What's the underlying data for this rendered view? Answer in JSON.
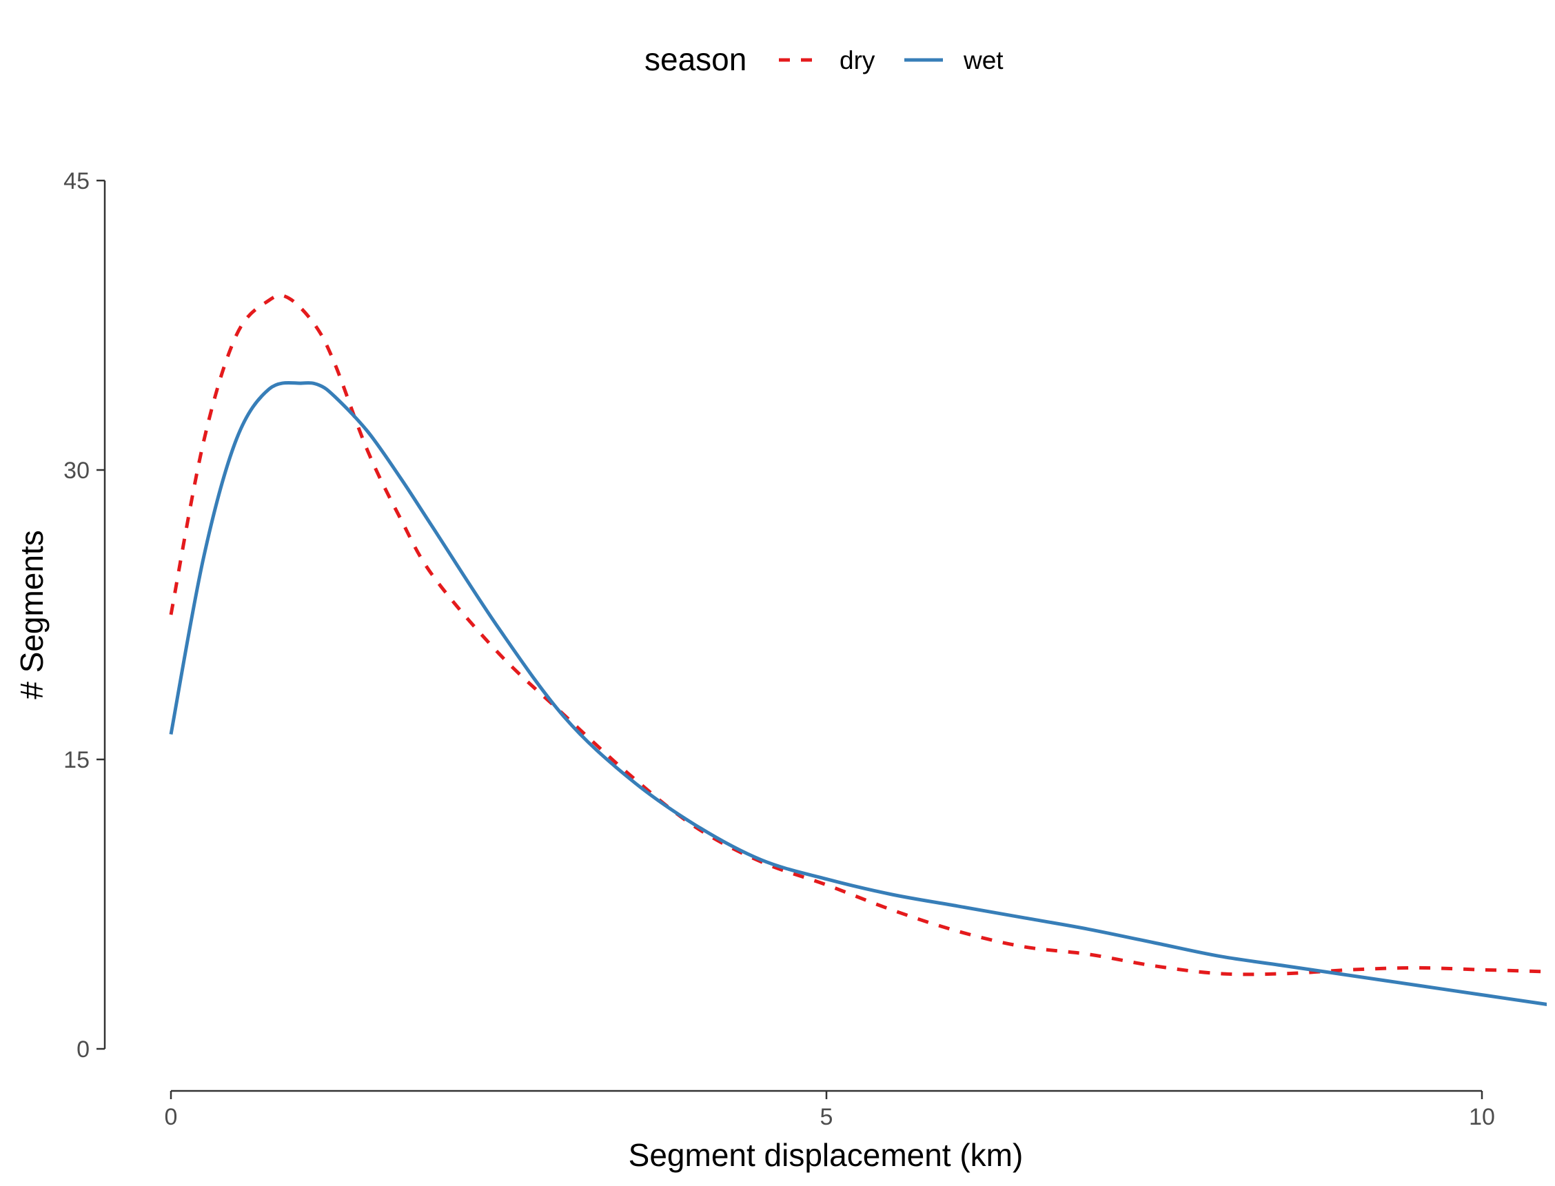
{
  "chart_data": {
    "type": "line",
    "xlabel": "Segment displacement (km)",
    "ylabel": "# Segments",
    "xlim": [
      -0.5,
      10.5
    ],
    "ylim": [
      0,
      45
    ],
    "x_ticks": [
      0,
      5,
      10
    ],
    "x_tick_labels": [
      "0",
      "5",
      "10"
    ],
    "y_ticks": [
      0,
      15,
      30,
      45
    ],
    "y_tick_labels": [
      "0",
      "15",
      "30",
      "45"
    ],
    "grid": false,
    "legend": {
      "title": "season",
      "position": "top"
    },
    "series": [
      {
        "name": "dry",
        "color": "#e41a1c",
        "dash": "dashed",
        "x": [
          0,
          0.25,
          0.5,
          0.75,
          0.9,
          1.1,
          1.25,
          1.5,
          1.75,
          2.0,
          2.5,
          3.0,
          3.5,
          4.0,
          4.5,
          5.0,
          5.5,
          6.0,
          6.5,
          7.0,
          7.5,
          8.0,
          8.5,
          9.0,
          9.5,
          10.0,
          10.5
        ],
        "y": [
          22.5,
          31.5,
          37.0,
          38.8,
          38.9,
          37.5,
          35.5,
          31.0,
          27.5,
          24.5,
          20.5,
          17.3,
          14.2,
          11.5,
          9.7,
          8.5,
          7.2,
          6.1,
          5.3,
          4.9,
          4.3,
          3.9,
          3.9,
          4.1,
          4.2,
          4.1,
          4.0
        ]
      },
      {
        "name": "wet",
        "color": "#377eb8",
        "dash": "solid",
        "x": [
          0,
          0.25,
          0.5,
          0.75,
          1.0,
          1.13,
          1.25,
          1.5,
          1.75,
          2.0,
          2.5,
          3.0,
          3.5,
          4.0,
          4.5,
          5.0,
          5.5,
          6.0,
          6.5,
          7.0,
          7.5,
          8.0,
          8.5,
          9.0,
          9.5,
          10.0,
          10.5
        ],
        "y": [
          16.3,
          25.5,
          31.6,
          34.2,
          34.5,
          34.4,
          33.8,
          32.0,
          29.6,
          27.0,
          21.8,
          17.2,
          14.0,
          11.6,
          9.8,
          8.8,
          8.0,
          7.4,
          6.8,
          6.2,
          5.5,
          4.8,
          4.3,
          3.8,
          3.3,
          2.8,
          2.3
        ]
      }
    ]
  }
}
